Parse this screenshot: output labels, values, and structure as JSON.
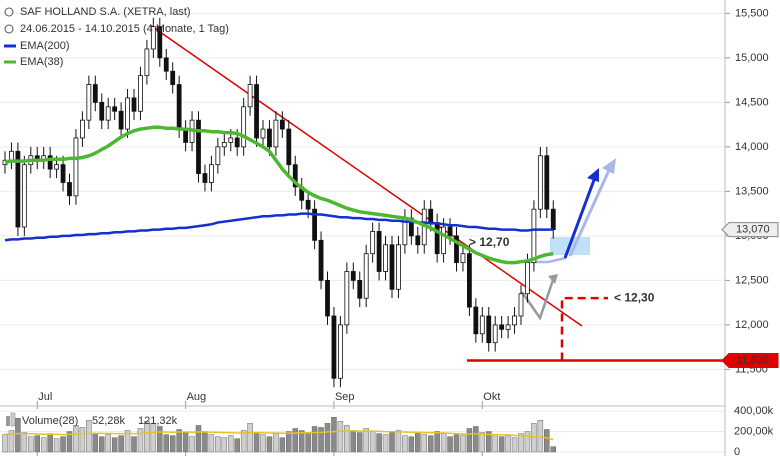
{
  "chart_data": {
    "type": "candlestick",
    "title": "SAF HOLLAND S.A. (XETRA, last)",
    "subtitle": "24.06.2015 - 14.10.2015 (4 Monate, 1 Tag)",
    "categories": [
      null,
      null,
      null,
      null,
      null,
      "Jul",
      null,
      null,
      null,
      null,
      null,
      null,
      null,
      null,
      null,
      null,
      null,
      null,
      null,
      null,
      null,
      null,
      null,
      null,
      null,
      null,
      null,
      null,
      "Aug",
      null,
      null,
      null,
      null,
      null,
      null,
      null,
      null,
      null,
      null,
      null,
      null,
      null,
      null,
      null,
      null,
      null,
      null,
      null,
      null,
      null,
      null,
      "Sep",
      null,
      null,
      null,
      null,
      null,
      null,
      null,
      null,
      null,
      null,
      null,
      null,
      null,
      null,
      null,
      null,
      null,
      null,
      null,
      null,
      null,
      null,
      "Okt",
      null,
      null,
      null,
      null,
      null,
      null,
      null,
      null,
      null,
      null,
      null
    ],
    "open": [
      13.8,
      13.85,
      13.95,
      13.1,
      13.8,
      13.9,
      13.85,
      13.9,
      13.75,
      13.8,
      13.6,
      13.45,
      14.1,
      14.3,
      14.7,
      14.5,
      14.3,
      14.45,
      14.4,
      14.2,
      14.55,
      14.4,
      14.8,
      15.1,
      15.35,
      15.0,
      14.85,
      14.7,
      14.2,
      14.05,
      14.3,
      13.7,
      13.6,
      13.8,
      14.0,
      14.05,
      14.1,
      14.0,
      14.45,
      14.7,
      14.1,
      14.2,
      14.0,
      14.3,
      14.2,
      13.8,
      13.55,
      13.4,
      13.3,
      12.95,
      12.5,
      12.1,
      11.4,
      12.0,
      12.6,
      12.5,
      12.3,
      12.8,
      13.05,
      12.6,
      12.9,
      12.4,
      12.9,
      13.2,
      13.0,
      12.9,
      13.3,
      13.15,
      12.8,
      13.1,
      13.0,
      12.7,
      12.8,
      12.2,
      11.9,
      12.1,
      11.8,
      12.0,
      11.95,
      12.0,
      12.1,
      12.35,
      12.7,
      13.3,
      13.9,
      13.3
    ],
    "high": [
      13.95,
      14.05,
      14.05,
      13.9,
      14.0,
      14.0,
      14.0,
      14.0,
      13.9,
      13.9,
      13.7,
      14.2,
      14.4,
      14.8,
      14.8,
      14.6,
      14.55,
      14.55,
      14.5,
      14.65,
      14.65,
      14.9,
      15.2,
      15.45,
      15.45,
      15.1,
      14.95,
      14.8,
      14.3,
      14.4,
      14.4,
      13.8,
      13.9,
      14.1,
      14.15,
      14.2,
      14.2,
      14.55,
      14.8,
      14.8,
      14.3,
      14.3,
      14.4,
      14.4,
      14.3,
      13.9,
      13.65,
      13.5,
      13.4,
      13.05,
      12.6,
      12.2,
      12.1,
      12.7,
      12.7,
      12.6,
      12.9,
      13.15,
      13.15,
      13.0,
      13.0,
      13.0,
      13.3,
      13.3,
      13.1,
      13.4,
      13.4,
      13.25,
      13.2,
      13.2,
      13.1,
      12.9,
      12.9,
      12.3,
      12.2,
      12.2,
      12.1,
      12.1,
      12.1,
      12.2,
      12.45,
      12.8,
      13.4,
      14.0,
      14.0,
      13.4
    ],
    "low": [
      13.7,
      13.75,
      13.0,
      13.0,
      13.7,
      13.75,
      13.75,
      13.65,
      13.65,
      13.5,
      13.35,
      13.35,
      14.0,
      14.2,
      14.4,
      14.2,
      14.2,
      14.3,
      14.1,
      14.1,
      14.3,
      14.3,
      14.7,
      15.0,
      14.9,
      14.75,
      14.6,
      14.1,
      13.95,
      13.95,
      13.6,
      13.5,
      13.5,
      13.7,
      13.9,
      13.95,
      13.9,
      13.9,
      14.35,
      14.0,
      14.0,
      13.9,
      13.9,
      14.1,
      13.7,
      13.45,
      13.3,
      13.2,
      12.85,
      12.4,
      12.0,
      11.3,
      11.3,
      11.9,
      12.4,
      12.2,
      12.2,
      12.7,
      12.5,
      12.5,
      12.3,
      12.3,
      12.8,
      12.9,
      12.8,
      12.8,
      13.05,
      12.7,
      12.7,
      12.9,
      12.6,
      12.6,
      12.1,
      11.8,
      11.8,
      11.7,
      11.7,
      11.85,
      11.85,
      11.9,
      12.0,
      12.25,
      12.6,
      13.2,
      13.2,
      12.97
    ],
    "close": [
      13.85,
      13.95,
      13.1,
      13.8,
      13.9,
      13.85,
      13.9,
      13.75,
      13.8,
      13.6,
      13.45,
      14.1,
      14.3,
      14.7,
      14.5,
      14.3,
      14.45,
      14.4,
      14.2,
      14.55,
      14.4,
      14.8,
      15.1,
      15.35,
      15.0,
      14.85,
      14.7,
      14.2,
      14.05,
      14.3,
      13.7,
      13.6,
      13.8,
      14.0,
      14.05,
      14.1,
      14.0,
      14.45,
      14.7,
      14.1,
      14.2,
      14.0,
      14.3,
      14.2,
      13.8,
      13.55,
      13.4,
      13.3,
      12.95,
      12.5,
      12.1,
      11.4,
      12.0,
      12.6,
      12.5,
      12.3,
      12.8,
      13.05,
      12.6,
      12.9,
      12.4,
      12.9,
      13.2,
      13.0,
      12.9,
      13.3,
      13.15,
      12.8,
      13.1,
      13.0,
      12.7,
      12.8,
      12.2,
      11.9,
      12.1,
      11.8,
      12.0,
      11.95,
      12.0,
      12.1,
      12.35,
      12.7,
      13.3,
      13.9,
      13.3,
      13.07
    ],
    "up_color": "#ffffff",
    "down_color": "#111111",
    "series": [
      {
        "name": "EMA(200)",
        "color": "#1530d0",
        "values": [
          12.95,
          12.96,
          12.96,
          12.97,
          12.97,
          12.98,
          12.98,
          12.99,
          12.99,
          13.0,
          13.0,
          13.01,
          13.01,
          13.02,
          13.02,
          13.03,
          13.03,
          13.04,
          13.04,
          13.05,
          13.05,
          13.06,
          13.06,
          13.07,
          13.07,
          13.08,
          13.08,
          13.09,
          13.09,
          13.1,
          13.11,
          13.12,
          13.13,
          13.15,
          13.16,
          13.17,
          13.18,
          13.19,
          13.2,
          13.21,
          13.22,
          13.22,
          13.23,
          13.23,
          13.24,
          13.24,
          13.25,
          13.25,
          13.24,
          13.24,
          13.23,
          13.22,
          13.21,
          13.21,
          13.2,
          13.2,
          13.19,
          13.19,
          13.18,
          13.18,
          13.17,
          13.17,
          13.16,
          13.16,
          13.15,
          13.15,
          13.14,
          13.14,
          13.13,
          13.12,
          13.12,
          13.11,
          13.1,
          13.1,
          13.09,
          13.08,
          13.08,
          13.07,
          13.07,
          13.07,
          13.06,
          13.06,
          13.07,
          13.07,
          13.07,
          13.07
        ]
      },
      {
        "name": "EMA(38)",
        "color": "#4cb832",
        "values": [
          13.83,
          13.84,
          13.84,
          13.84,
          13.85,
          13.85,
          13.85,
          13.86,
          13.86,
          13.86,
          13.87,
          13.87,
          13.88,
          13.9,
          13.93,
          13.97,
          14.01,
          14.06,
          14.11,
          14.15,
          14.18,
          14.2,
          14.21,
          14.22,
          14.22,
          14.21,
          14.21,
          14.2,
          14.2,
          14.19,
          14.18,
          14.18,
          14.17,
          14.17,
          14.16,
          14.16,
          14.15,
          14.12,
          14.08,
          14.04,
          14.0,
          13.95,
          13.85,
          13.75,
          13.67,
          13.6,
          13.54,
          13.49,
          13.45,
          13.42,
          13.4,
          13.37,
          13.34,
          13.31,
          13.29,
          13.27,
          13.26,
          13.25,
          13.24,
          13.23,
          13.22,
          13.21,
          13.2,
          13.18,
          13.15,
          13.12,
          13.09,
          13.05,
          13.01,
          12.97,
          12.93,
          12.89,
          12.85,
          12.81,
          12.78,
          12.75,
          12.73,
          12.71,
          12.7,
          12.7,
          12.71,
          12.72,
          12.74,
          12.77,
          12.79,
          12.8
        ]
      }
    ],
    "ylim": [
      11.1,
      15.65
    ],
    "yticks": [
      {
        "value": 11.5,
        "label": "11,500"
      },
      {
        "value": 12,
        "label": "12,000"
      },
      {
        "value": 12.5,
        "label": "12,500"
      },
      {
        "value": 13,
        "label": "13,000"
      },
      {
        "value": 13.5,
        "label": "13,500"
      },
      {
        "value": 14,
        "label": "14,000"
      },
      {
        "value": 14.5,
        "label": "14,500"
      },
      {
        "value": 15,
        "label": "15,000"
      },
      {
        "value": 15.5,
        "label": "15,500"
      }
    ],
    "grid": true,
    "annotations": [
      {
        "value": 12.7,
        "label": "> 12,70",
        "color": "#8fa6e0"
      },
      {
        "value": 12.3,
        "label": "< 12,30",
        "color": "#e00000"
      }
    ],
    "price_tags": [
      {
        "value": 13.07,
        "label": "13,070",
        "color": "#eeeeee"
      },
      {
        "value": 11.6,
        "label": "11,600",
        "color": "#e00000"
      }
    ],
    "volume": {
      "name": "Volume(28)",
      "values": [
        170000,
        210000,
        330000,
        190000,
        150000,
        160000,
        140000,
        180000,
        130000,
        150000,
        200000,
        260000,
        240000,
        310000,
        180000,
        150000,
        170000,
        140000,
        160000,
        210000,
        150000,
        230000,
        300000,
        280000,
        250000,
        170000,
        160000,
        220000,
        190000,
        150000,
        260000,
        200000,
        170000,
        150000,
        140000,
        160000,
        130000,
        210000,
        280000,
        190000,
        170000,
        150000,
        180000,
        140000,
        200000,
        230000,
        210000,
        190000,
        250000,
        240000,
        280000,
        340000,
        300000,
        260000,
        210000,
        190000,
        230000,
        200000,
        180000,
        170000,
        190000,
        210000,
        160000,
        150000,
        190000,
        170000,
        160000,
        200000,
        180000,
        150000,
        170000,
        160000,
        230000,
        250000,
        190000,
        200000,
        170000,
        150000,
        160000,
        140000,
        180000,
        200000,
        280000,
        310000,
        220000,
        52280
      ],
      "value_label": "52,28k",
      "ma_values": [
        175000,
        176000,
        180000,
        180000,
        178000,
        176000,
        174000,
        174000,
        172000,
        170000,
        172000,
        176000,
        178000,
        184000,
        184000,
        182000,
        182000,
        180000,
        180000,
        182000,
        180000,
        182000,
        188000,
        192000,
        196000,
        196000,
        194000,
        196000,
        196000,
        194000,
        196000,
        196000,
        194000,
        192000,
        190000,
        188000,
        186000,
        186000,
        190000,
        190000,
        188000,
        186000,
        186000,
        184000,
        184000,
        186000,
        188000,
        188000,
        190000,
        192000,
        196000,
        200000,
        204000,
        206000,
        206000,
        204000,
        204000,
        204000,
        202000,
        200000,
        198000,
        198000,
        196000,
        194000,
        192000,
        190000,
        188000,
        188000,
        186000,
        184000,
        180000,
        176000,
        176000,
        176000,
        174000,
        172000,
        170000,
        168000,
        166000,
        162000,
        158000,
        154000,
        150000,
        146000,
        138000,
        121320
      ],
      "ma_value_label": "121,32k",
      "ma_color": "#e6c229",
      "up_color": "#cfcfcf",
      "down_color": "#8a8a8a",
      "ylim": [
        0,
        450000
      ],
      "yticks": [
        0,
        {
          "value": 200000,
          "label": "200,00k"
        },
        {
          "value": 400000,
          "label": "400,00k"
        }
      ]
    }
  }
}
